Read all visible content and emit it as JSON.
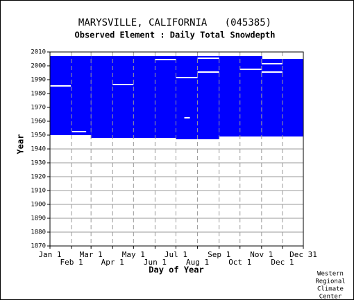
{
  "chart_data": {
    "type": "coverage",
    "title": "MARYSVILLE, CALIFORNIA   (045385)",
    "subtitle": "Observed Element : Daily Total Snowdepth",
    "x_label": "Day of Year",
    "y_label": "Year",
    "credit": [
      "Western",
      "Regional",
      "Climate",
      "Center"
    ],
    "color": "#0000ff",
    "xlim": [
      1,
      365
    ],
    "ylim": [
      1870,
      2010
    ],
    "xticks": [
      {
        "value": 1,
        "label": "Jan 1"
      },
      {
        "value": 32,
        "label": "Feb 1"
      },
      {
        "value": 60,
        "label": "Mar 1"
      },
      {
        "value": 91,
        "label": "Apr 1"
      },
      {
        "value": 121,
        "label": "May 1"
      },
      {
        "value": 152,
        "label": "Jun 1"
      },
      {
        "value": 182,
        "label": "Jul 1"
      },
      {
        "value": 213,
        "label": "Aug 1"
      },
      {
        "value": 244,
        "label": "Sep 1"
      },
      {
        "value": 274,
        "label": "Oct 1"
      },
      {
        "value": 305,
        "label": "Nov 1"
      },
      {
        "value": 335,
        "label": "Dec 1"
      },
      {
        "value": 365,
        "label": "Dec 31"
      }
    ],
    "yticks": [
      1870,
      1880,
      1890,
      1900,
      1910,
      1920,
      1930,
      1940,
      1950,
      1960,
      1970,
      1980,
      1990,
      2000,
      2010
    ],
    "blocks": [
      {
        "days": [
          1,
          59
        ],
        "years": [
          1949,
          2006
        ]
      },
      {
        "days": [
          60,
          181
        ],
        "years": [
          1948,
          2006
        ]
      },
      {
        "days": [
          182,
          243
        ],
        "years": [
          1947,
          2006
        ]
      },
      {
        "days": [
          244,
          305
        ],
        "years": [
          1948,
          2006
        ]
      },
      {
        "days": [
          306,
          365
        ],
        "years": [
          1948,
          2004
        ]
      }
    ],
    "gaps": [
      {
        "days": [
          1,
          30
        ],
        "year": 1985
      },
      {
        "days": [
          91,
          120
        ],
        "year": 1986
      },
      {
        "days": [
          182,
          212
        ],
        "year": 1991
      },
      {
        "days": [
          152,
          181
        ],
        "year": 2004
      },
      {
        "days": [
          213,
          243
        ],
        "year": 2005
      },
      {
        "days": [
          213,
          243
        ],
        "year": 1995
      },
      {
        "days": [
          274,
          304
        ],
        "year": 1997
      },
      {
        "days": [
          305,
          334
        ],
        "year": 2001
      },
      {
        "days": [
          305,
          334
        ],
        "year": 1995
      },
      {
        "days": [
          194,
          201
        ],
        "year": 1962
      },
      {
        "days": [
          33,
          52
        ],
        "year": 1952
      },
      {
        "days": [
          1,
          59
        ],
        "year": 1949
      },
      {
        "days": [
          244,
          365
        ],
        "year": 1948
      }
    ]
  }
}
